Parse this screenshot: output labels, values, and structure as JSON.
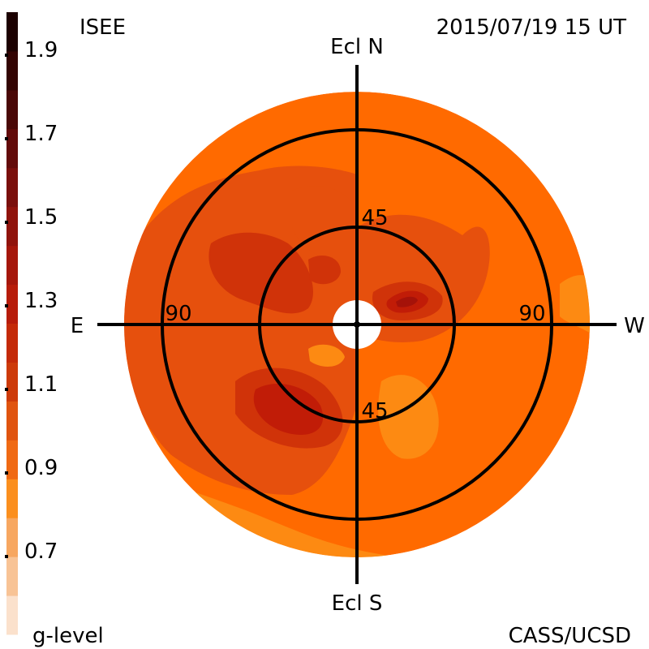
{
  "header": {
    "source": "ISEE",
    "timestamp": "2015/07/19 15 UT"
  },
  "footer": {
    "credit": "CASS/UCSD"
  },
  "colorbar": {
    "title": "g-level",
    "tick_labels": [
      "1.9",
      "1.7",
      "1.5",
      "1.3",
      "1.1",
      "0.9",
      "0.7"
    ],
    "colors": [
      "#fbe1cc",
      "#f8c395",
      "#f7a760",
      "#fb8f1e",
      "#f06a14",
      "#e0540f",
      "#cd3a09",
      "#c42a08",
      "#b71c0a",
      "#a5170b",
      "#90130c",
      "#7a0f0c",
      "#630b0a",
      "#4a0807",
      "#330403",
      "#1c0101"
    ]
  },
  "map": {
    "directions": {
      "north": "Ecl N",
      "south": "Ecl S",
      "east": "E",
      "west": "W"
    },
    "ring_labels": {
      "inner_north": "45",
      "inner_south": "45",
      "outer_east": "90",
      "outer_west": "90"
    },
    "level_colors": {
      "base": "#ff6a00",
      "low": "#fd8a12",
      "very_low": "#fa9c3a",
      "mid": "#e6500d",
      "high": "#d03309",
      "very_high": "#c11c07",
      "peak": "#a51209"
    }
  }
}
